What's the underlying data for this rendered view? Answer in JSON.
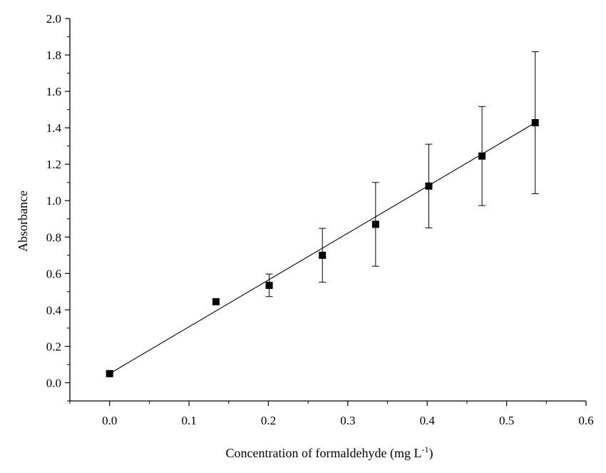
{
  "chart_data": {
    "type": "scatter",
    "xlabel": "Concentration of formaldehyde (mg L",
    "xlabel_sup": "-1",
    "xlabel_close": ")",
    "ylabel": "Absorbance",
    "xlim": [
      -0.05,
      0.6
    ],
    "ylim": [
      -0.1,
      2.0
    ],
    "x_ticks": [
      0.0,
      0.1,
      0.2,
      0.3,
      0.4,
      0.5,
      0.6
    ],
    "x_tick_labels": [
      "0.0",
      "0.1",
      "0.2",
      "0.3",
      "0.4",
      "0.5",
      "0.6"
    ],
    "y_ticks": [
      0.0,
      0.2,
      0.4,
      0.6,
      0.8,
      1.0,
      1.2,
      1.4,
      1.6,
      1.8,
      2.0
    ],
    "y_tick_labels": [
      "0.0",
      "0.2",
      "0.4",
      "0.6",
      "0.8",
      "1.0",
      "1.2",
      "1.4",
      "1.6",
      "1.8",
      "2.0"
    ],
    "grid": false,
    "points": [
      {
        "x": 0.0,
        "y": 0.05,
        "err": 0.01
      },
      {
        "x": 0.134,
        "y": 0.445,
        "err": 0.015
      },
      {
        "x": 0.201,
        "y": 0.535,
        "err": 0.062
      },
      {
        "x": 0.268,
        "y": 0.7,
        "err": 0.148
      },
      {
        "x": 0.335,
        "y": 0.87,
        "err": 0.23
      },
      {
        "x": 0.402,
        "y": 1.08,
        "err": 0.23
      },
      {
        "x": 0.469,
        "y": 1.245,
        "err": 0.272
      },
      {
        "x": 0.536,
        "y": 1.428,
        "err": 0.39
      }
    ],
    "fit_line": {
      "x": [
        0.0,
        0.536
      ],
      "y": [
        0.05,
        1.428
      ]
    },
    "colors": {
      "marker": "#000000",
      "line": "#000000",
      "axis": "#000000"
    }
  }
}
